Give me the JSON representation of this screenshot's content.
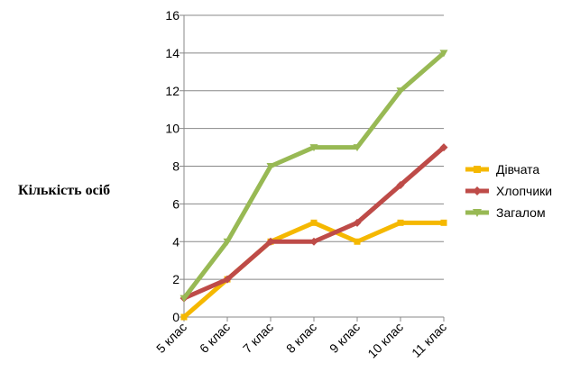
{
  "chart_data": {
    "type": "line",
    "categories": [
      "5 клас",
      "6 клас",
      "7 клас",
      "8 клас",
      "9 клас",
      "10 клас",
      "11 клас"
    ],
    "series": [
      {
        "name": "Дівчата",
        "color": "#f5b800",
        "marker": "square",
        "values": [
          0,
          2,
          4,
          5,
          4,
          5,
          5
        ]
      },
      {
        "name": "Хлопчики",
        "color": "#be4b48",
        "marker": "diamond",
        "values": [
          1,
          2,
          4,
          4,
          5,
          7,
          9
        ]
      },
      {
        "name": "Загалом",
        "color": "#98b954",
        "marker": "triangle",
        "values": [
          1,
          4,
          8,
          9,
          9,
          12,
          14
        ]
      }
    ],
    "ylabel": "Кількість осіб",
    "ylim": [
      0,
      16
    ],
    "yticks": [
      0,
      2,
      4,
      6,
      8,
      10,
      12,
      14,
      16
    ],
    "grid": true,
    "legend": "right"
  }
}
